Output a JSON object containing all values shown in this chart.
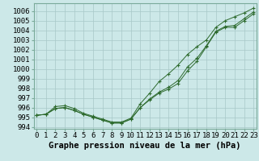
{
  "title": "Graphe pression niveau de la mer (hPa)",
  "x_labels": [
    "0",
    "1",
    "2",
    "3",
    "4",
    "5",
    "6",
    "7",
    "8",
    "9",
    "10",
    "11",
    "12",
    "13",
    "14",
    "15",
    "16",
    "17",
    "18",
    "19",
    "20",
    "21",
    "22",
    "23"
  ],
  "ylim": [
    993.8,
    1006.8
  ],
  "xlim": [
    -0.3,
    23.3
  ],
  "yticks": [
    994,
    995,
    996,
    997,
    998,
    999,
    1000,
    1001,
    1002,
    1003,
    1004,
    1005,
    1006
  ],
  "line1": [
    995.2,
    995.3,
    995.9,
    996.0,
    995.7,
    995.3,
    995.0,
    994.7,
    994.4,
    994.4,
    994.8,
    996.0,
    996.8,
    997.5,
    997.9,
    998.5,
    999.8,
    1000.8,
    1002.3,
    1003.8,
    1004.3,
    1004.3,
    1005.0,
    1005.7
  ],
  "line2": [
    995.2,
    995.3,
    995.9,
    996.0,
    995.7,
    995.3,
    995.0,
    994.7,
    994.4,
    994.4,
    994.8,
    996.0,
    996.9,
    997.6,
    998.1,
    998.8,
    1000.2,
    1001.1,
    1002.4,
    1003.9,
    1004.4,
    1004.5,
    1005.2,
    1005.9
  ],
  "line3": [
    995.2,
    995.3,
    996.1,
    996.2,
    995.9,
    995.4,
    995.1,
    994.8,
    994.5,
    994.5,
    994.9,
    996.4,
    997.5,
    998.7,
    999.5,
    1000.4,
    1001.5,
    1002.3,
    1003.0,
    1004.3,
    1005.0,
    1005.4,
    1005.8,
    1006.3
  ],
  "line_color": "#2d6a2d",
  "marker": "+",
  "bg_color": "#cce8e8",
  "grid_color": "#a8c8c8",
  "title_fontsize": 7.5,
  "tick_fontsize": 6.5
}
